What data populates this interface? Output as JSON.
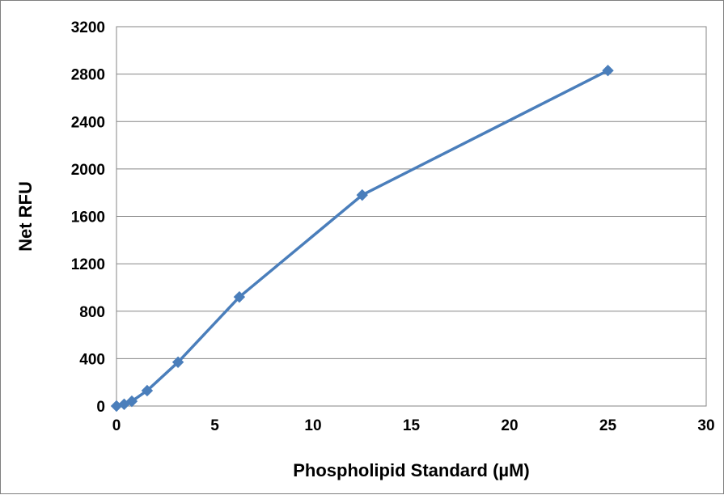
{
  "chart_data": {
    "type": "line",
    "title": "",
    "xlabel": "Phospholipid Standard (µM)",
    "ylabel": "Net RFU",
    "xlim": [
      0,
      30
    ],
    "ylim": [
      0,
      3200
    ],
    "x_ticks": [
      "0",
      "5",
      "10",
      "15",
      "20",
      "25",
      "30"
    ],
    "y_ticks": [
      "0",
      "400",
      "800",
      "1200",
      "1600",
      "2000",
      "2400",
      "2800",
      "3200"
    ],
    "grid": "horizontal",
    "legend": "none",
    "series": [
      {
        "color": "#4a7ebb",
        "marker": "diamond",
        "x": [
          0,
          0.39,
          0.78,
          1.56,
          3.13,
          6.25,
          12.5,
          25
        ],
        "y": [
          0,
          15,
          40,
          130,
          370,
          920,
          1780,
          2830
        ]
      }
    ]
  }
}
